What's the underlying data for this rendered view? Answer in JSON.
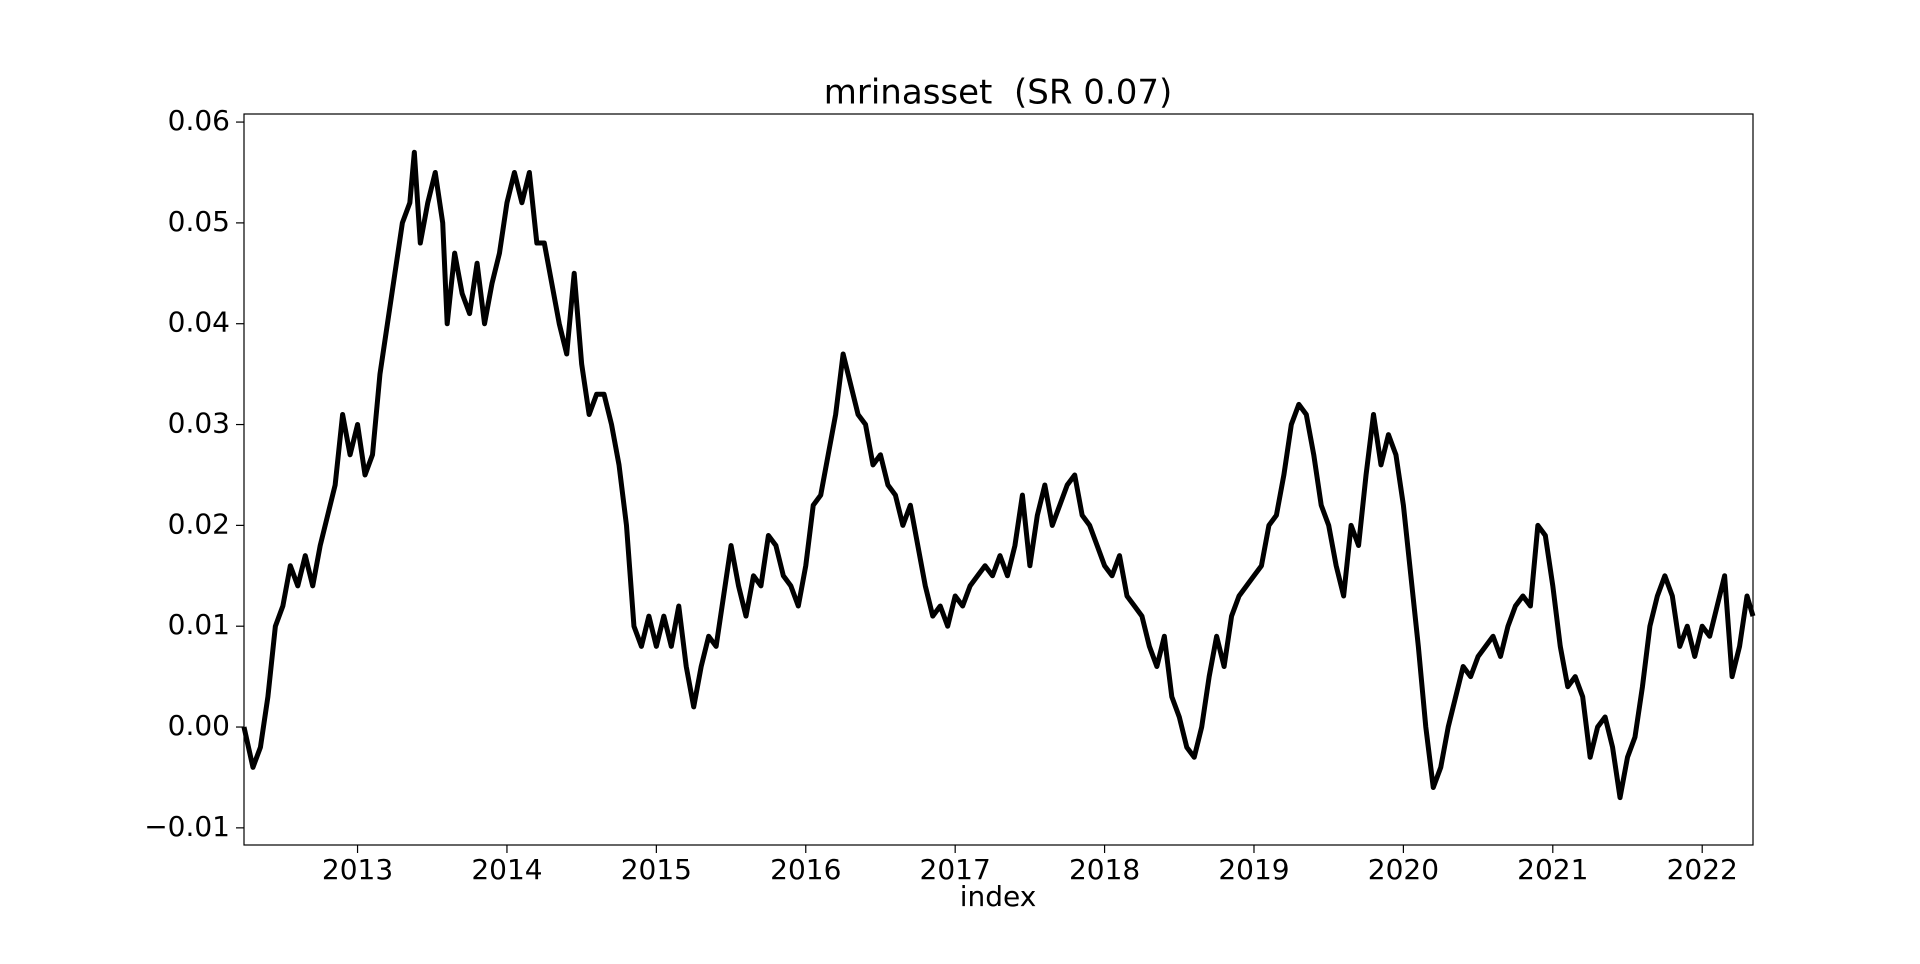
{
  "chart_data": {
    "type": "line",
    "title": "mrinasset  (SR 0.07)",
    "xlabel": "index",
    "color": "#000000",
    "grid": false,
    "xlim": [
      2012.24,
      2022.34
    ],
    "xticks": [
      2013,
      2014,
      2015,
      2016,
      2017,
      2018,
      2019,
      2020,
      2021,
      2022
    ],
    "ylim": [
      -0.0117,
      0.0608
    ],
    "yticks": [
      {
        "value": -0.01,
        "label": "−0.01"
      },
      {
        "value": 0,
        "label": "0.00"
      },
      0.01,
      0.02,
      0.03,
      0.04,
      0.05,
      0.06
    ],
    "x": [
      2012.24,
      2012.3,
      2012.35,
      2012.4,
      2012.45,
      2012.5,
      2012.55,
      2012.6,
      2012.65,
      2012.7,
      2012.75,
      2012.8,
      2012.85,
      2012.9,
      2012.95,
      2013.0,
      2013.05,
      2013.1,
      2013.15,
      2013.2,
      2013.25,
      2013.3,
      2013.35,
      2013.38,
      2013.42,
      2013.47,
      2013.52,
      2013.57,
      2013.6,
      2013.65,
      2013.7,
      2013.75,
      2013.8,
      2013.85,
      2013.9,
      2013.95,
      2014.0,
      2014.05,
      2014.1,
      2014.15,
      2014.2,
      2014.25,
      2014.3,
      2014.35,
      2014.4,
      2014.45,
      2014.5,
      2014.55,
      2014.6,
      2014.65,
      2014.7,
      2014.75,
      2014.8,
      2014.85,
      2014.9,
      2014.95,
      2015.0,
      2015.05,
      2015.1,
      2015.15,
      2015.2,
      2015.25,
      2015.3,
      2015.35,
      2015.4,
      2015.45,
      2015.5,
      2015.55,
      2015.6,
      2015.65,
      2015.7,
      2015.75,
      2015.8,
      2015.85,
      2015.9,
      2015.95,
      2016.0,
      2016.05,
      2016.1,
      2016.15,
      2016.2,
      2016.25,
      2016.3,
      2016.35,
      2016.4,
      2016.45,
      2016.5,
      2016.55,
      2016.6,
      2016.65,
      2016.7,
      2016.75,
      2016.8,
      2016.85,
      2016.9,
      2016.95,
      2017.0,
      2017.05,
      2017.1,
      2017.15,
      2017.2,
      2017.25,
      2017.3,
      2017.35,
      2017.4,
      2017.45,
      2017.5,
      2017.55,
      2017.6,
      2017.65,
      2017.7,
      2017.75,
      2017.8,
      2017.85,
      2017.9,
      2017.95,
      2018.0,
      2018.05,
      2018.1,
      2018.15,
      2018.2,
      2018.25,
      2018.3,
      2018.35,
      2018.4,
      2018.45,
      2018.5,
      2018.55,
      2018.6,
      2018.65,
      2018.7,
      2018.75,
      2018.8,
      2018.85,
      2018.9,
      2018.95,
      2019.0,
      2019.05,
      2019.1,
      2019.15,
      2019.2,
      2019.25,
      2019.3,
      2019.35,
      2019.4,
      2019.45,
      2019.5,
      2019.55,
      2019.6,
      2019.65,
      2019.7,
      2019.75,
      2019.8,
      2019.85,
      2019.9,
      2019.95,
      2020.0,
      2020.05,
      2020.1,
      2020.15,
      2020.2,
      2020.25,
      2020.3,
      2020.35,
      2020.4,
      2020.45,
      2020.5,
      2020.55,
      2020.6,
      2020.65,
      2020.7,
      2020.75,
      2020.8,
      2020.85,
      2020.9,
      2020.95,
      2021.0,
      2021.05,
      2021.1,
      2021.15,
      2021.2,
      2021.25,
      2021.3,
      2021.35,
      2021.4,
      2021.45,
      2021.5,
      2021.55,
      2021.6,
      2021.65,
      2021.7,
      2021.75,
      2021.8,
      2021.85,
      2021.9,
      2021.95,
      2022.0,
      2022.05,
      2022.1,
      2022.15,
      2022.2,
      2022.25,
      2022.3,
      2022.34
    ],
    "values": [
      0.0,
      -0.004,
      -0.002,
      0.003,
      0.01,
      0.012,
      0.016,
      0.014,
      0.017,
      0.014,
      0.018,
      0.021,
      0.024,
      0.031,
      0.027,
      0.03,
      0.025,
      0.027,
      0.035,
      0.04,
      0.045,
      0.05,
      0.052,
      0.057,
      0.048,
      0.052,
      0.055,
      0.05,
      0.04,
      0.047,
      0.043,
      0.041,
      0.046,
      0.04,
      0.044,
      0.047,
      0.052,
      0.055,
      0.052,
      0.055,
      0.048,
      0.048,
      0.044,
      0.04,
      0.037,
      0.045,
      0.036,
      0.031,
      0.033,
      0.033,
      0.03,
      0.026,
      0.02,
      0.01,
      0.008,
      0.011,
      0.008,
      0.011,
      0.008,
      0.012,
      0.006,
      0.002,
      0.006,
      0.009,
      0.008,
      0.013,
      0.018,
      0.014,
      0.011,
      0.015,
      0.014,
      0.019,
      0.018,
      0.015,
      0.014,
      0.012,
      0.016,
      0.022,
      0.023,
      0.027,
      0.031,
      0.037,
      0.034,
      0.031,
      0.03,
      0.026,
      0.027,
      0.024,
      0.023,
      0.02,
      0.022,
      0.018,
      0.014,
      0.011,
      0.012,
      0.01,
      0.013,
      0.012,
      0.014,
      0.015,
      0.016,
      0.015,
      0.017,
      0.015,
      0.018,
      0.023,
      0.016,
      0.021,
      0.024,
      0.02,
      0.022,
      0.024,
      0.025,
      0.021,
      0.02,
      0.018,
      0.016,
      0.015,
      0.017,
      0.013,
      0.012,
      0.011,
      0.008,
      0.006,
      0.009,
      0.003,
      0.001,
      -0.002,
      -0.003,
      0.0,
      0.005,
      0.009,
      0.006,
      0.011,
      0.013,
      0.014,
      0.015,
      0.016,
      0.02,
      0.021,
      0.025,
      0.03,
      0.032,
      0.031,
      0.027,
      0.022,
      0.02,
      0.016,
      0.013,
      0.02,
      0.018,
      0.025,
      0.031,
      0.026,
      0.029,
      0.027,
      0.022,
      0.015,
      0.008,
      0.0,
      -0.006,
      -0.004,
      0.0,
      0.003,
      0.006,
      0.005,
      0.007,
      0.008,
      0.009,
      0.007,
      0.01,
      0.012,
      0.013,
      0.012,
      0.02,
      0.019,
      0.014,
      0.008,
      0.004,
      0.005,
      0.003,
      -0.003,
      0.0,
      0.001,
      -0.002,
      -0.007,
      -0.003,
      -0.001,
      0.004,
      0.01,
      0.013,
      0.015,
      0.013,
      0.008,
      0.01,
      0.007,
      0.01,
      0.009,
      0.012,
      0.015,
      0.005,
      0.008,
      0.013,
      0.011
    ]
  }
}
